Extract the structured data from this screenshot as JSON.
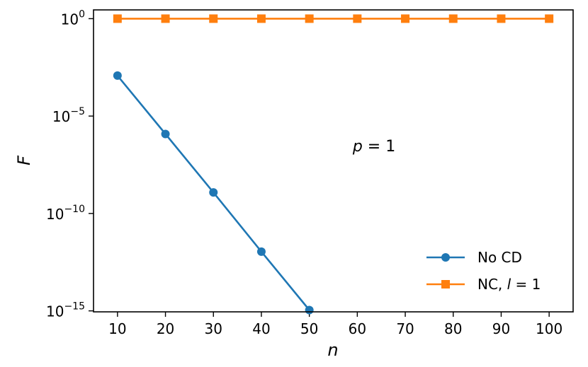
{
  "chart_data": {
    "type": "line",
    "xlabel": "n",
    "ylabel": "F",
    "yscale": "log",
    "xlim": [
      5,
      105
    ],
    "ylim": [
      1e-15,
      1
    ],
    "x": [
      10,
      20,
      30,
      40,
      50,
      60,
      70,
      80,
      90,
      100
    ],
    "x_ticks": [
      10,
      20,
      30,
      40,
      50,
      60,
      70,
      80,
      90,
      100
    ],
    "y_ticks": [
      {
        "value": 1,
        "exponent": "0"
      },
      {
        "value": 1e-05,
        "exponent": "−5"
      },
      {
        "value": 1e-10,
        "exponent": "−10"
      },
      {
        "value": 1e-15,
        "exponent": "−15"
      }
    ],
    "tick_base": "10",
    "series": [
      {
        "name": "No CD",
        "color": "#1f77b4",
        "marker": "circle",
        "x": [
          10,
          20,
          30,
          40,
          50
        ],
        "values": [
          0.0012,
          1.2e-06,
          1.2e-09,
          1.1e-12,
          1.1e-15
        ]
      },
      {
        "name": "NC, l = 1",
        "color": "#ff7f0e",
        "marker": "square",
        "x": [
          10,
          20,
          30,
          40,
          50,
          60,
          70,
          80,
          90,
          100
        ],
        "values": [
          1,
          1,
          1,
          1,
          1,
          1,
          1,
          1,
          1,
          1
        ]
      }
    ],
    "annotations": [
      {
        "text": "p = 1",
        "x": 63.5,
        "y": 3e-07
      }
    ],
    "legend": {
      "placement": "lower-right",
      "entries": [
        {
          "label": "No CD",
          "italic_part": ""
        },
        {
          "label_prefix": "NC, ",
          "italic_part": "l",
          "label_suffix": " = 1"
        }
      ]
    },
    "grid": false
  }
}
